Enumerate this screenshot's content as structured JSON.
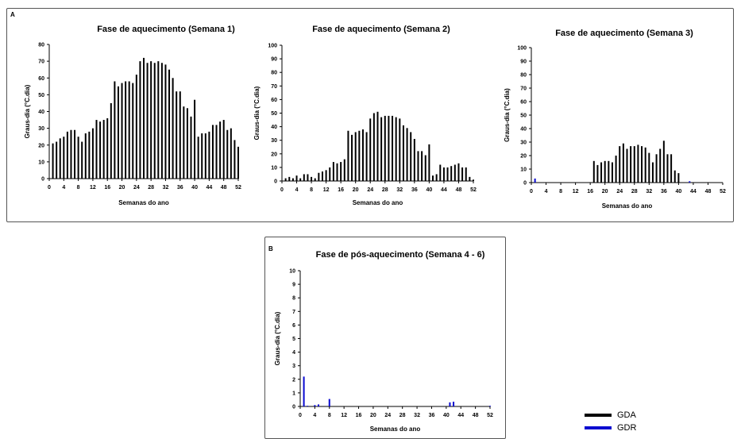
{
  "panels": {
    "a_label": "A",
    "b_label": "B"
  },
  "legend": [
    {
      "label": "GDA",
      "color": "#000000"
    },
    {
      "label": "GDR",
      "color": "#0a0ad0"
    }
  ],
  "chart_data": [
    {
      "type": "bar",
      "title": "Fase de aquecimento (Semana 1)",
      "xlabel": "Semanas do ano",
      "ylabel": "Graus-dia (°C.dia)",
      "xlim": [
        0,
        52
      ],
      "ylim": [
        0,
        80
      ],
      "yticks": [
        0,
        10,
        20,
        30,
        40,
        50,
        60,
        70,
        80
      ],
      "xticks": [
        0,
        4,
        8,
        12,
        16,
        20,
        24,
        28,
        32,
        36,
        40,
        44,
        48,
        52
      ],
      "series": [
        {
          "name": "GDA",
          "color": "#000000",
          "x": [
            1,
            2,
            3,
            4,
            5,
            6,
            7,
            8,
            9,
            10,
            11,
            12,
            13,
            14,
            15,
            16,
            17,
            18,
            19,
            20,
            21,
            22,
            23,
            24,
            25,
            26,
            27,
            28,
            29,
            30,
            31,
            32,
            33,
            34,
            35,
            36,
            37,
            38,
            39,
            40,
            41,
            42,
            43,
            44,
            45,
            46,
            47,
            48,
            49,
            50,
            51,
            52
          ],
          "values": [
            21,
            22,
            24,
            25,
            28,
            29,
            29,
            25,
            22,
            27,
            28,
            30,
            35,
            34,
            35,
            36,
            45,
            58,
            55,
            57,
            58,
            58,
            57,
            62,
            70,
            72,
            69,
            70,
            69,
            70,
            69,
            68,
            65,
            60,
            52,
            52,
            43,
            42,
            37,
            47,
            25,
            27,
            27,
            28,
            32,
            32,
            34,
            35,
            29,
            30,
            23,
            19
          ]
        }
      ]
    },
    {
      "type": "bar",
      "title": "Fase de aquecimento (Semana 2)",
      "xlabel": "Semanas do ano",
      "ylabel": "Graus-dia (°C.dia)",
      "xlim": [
        0,
        52
      ],
      "ylim": [
        0,
        100
      ],
      "yticks": [
        0,
        10,
        20,
        30,
        40,
        50,
        60,
        70,
        80,
        90,
        100
      ],
      "xticks": [
        0,
        4,
        8,
        12,
        16,
        20,
        24,
        28,
        32,
        36,
        40,
        44,
        48,
        52
      ],
      "series": [
        {
          "name": "GDA",
          "color": "#000000",
          "x": [
            1,
            2,
            3,
            4,
            5,
            6,
            7,
            8,
            9,
            10,
            11,
            12,
            13,
            14,
            15,
            16,
            17,
            18,
            19,
            20,
            21,
            22,
            23,
            24,
            25,
            26,
            27,
            28,
            29,
            30,
            31,
            32,
            33,
            34,
            35,
            36,
            37,
            38,
            39,
            40,
            41,
            42,
            43,
            44,
            45,
            46,
            47,
            48,
            49,
            50,
            51,
            52
          ],
          "values": [
            2,
            3,
            2,
            4,
            2,
            5,
            5,
            3,
            2,
            6,
            7,
            8,
            10,
            14,
            13,
            14,
            16,
            37,
            34,
            36,
            37,
            38,
            36,
            46,
            50,
            51,
            47,
            48,
            48,
            48,
            47,
            46,
            41,
            39,
            36,
            31,
            22,
            22,
            19,
            27,
            4,
            5,
            12,
            10,
            10,
            11,
            12,
            13,
            10,
            10,
            3,
            1
          ]
        }
      ]
    },
    {
      "type": "bar",
      "title": "Fase de aquecimento (Semana 3)",
      "xlabel": "Semanas do ano",
      "ylabel": "Graus-dia (°C.dia)",
      "xlim": [
        0,
        52
      ],
      "ylim": [
        0,
        100
      ],
      "yticks": [
        0,
        10,
        20,
        30,
        40,
        50,
        60,
        70,
        80,
        90,
        100
      ],
      "xticks": [
        0,
        4,
        8,
        12,
        16,
        20,
        24,
        28,
        32,
        36,
        40,
        44,
        48,
        52
      ],
      "series": [
        {
          "name": "GDA",
          "color": "#000000",
          "x": [
            17,
            18,
            19,
            20,
            21,
            22,
            23,
            24,
            25,
            26,
            27,
            28,
            29,
            30,
            31,
            32,
            33,
            34,
            35,
            36,
            37,
            38,
            39,
            40
          ],
          "values": [
            16,
            13,
            15,
            16,
            16,
            15,
            20,
            27,
            29,
            25,
            27,
            27,
            28,
            27,
            26,
            22,
            15,
            21,
            25,
            31,
            21,
            21,
            9,
            7
          ]
        },
        {
          "name": "GDR",
          "color": "#0a0ad0",
          "x": [
            1,
            43
          ],
          "values": [
            3,
            1
          ]
        }
      ]
    },
    {
      "type": "bar",
      "title": "Fase de pós-aquecimento (Semana 4 - 6)",
      "xlabel": "Semanas do ano",
      "ylabel": "Graus-dia (°C.dia)",
      "xlim": [
        0,
        52
      ],
      "ylim": [
        0,
        10
      ],
      "yticks": [
        0,
        1,
        2,
        3,
        4,
        5,
        6,
        7,
        8,
        9,
        10
      ],
      "xticks": [
        0,
        4,
        8,
        12,
        16,
        20,
        24,
        28,
        32,
        36,
        40,
        44,
        48,
        52
      ],
      "series": [
        {
          "name": "GDR",
          "color": "#0a0ad0",
          "x": [
            1,
            2,
            4,
            5,
            8,
            41,
            42,
            52
          ],
          "values": [
            2.2,
            0.05,
            0.1,
            0.15,
            0.55,
            0.3,
            0.35,
            0.05
          ]
        }
      ]
    }
  ]
}
